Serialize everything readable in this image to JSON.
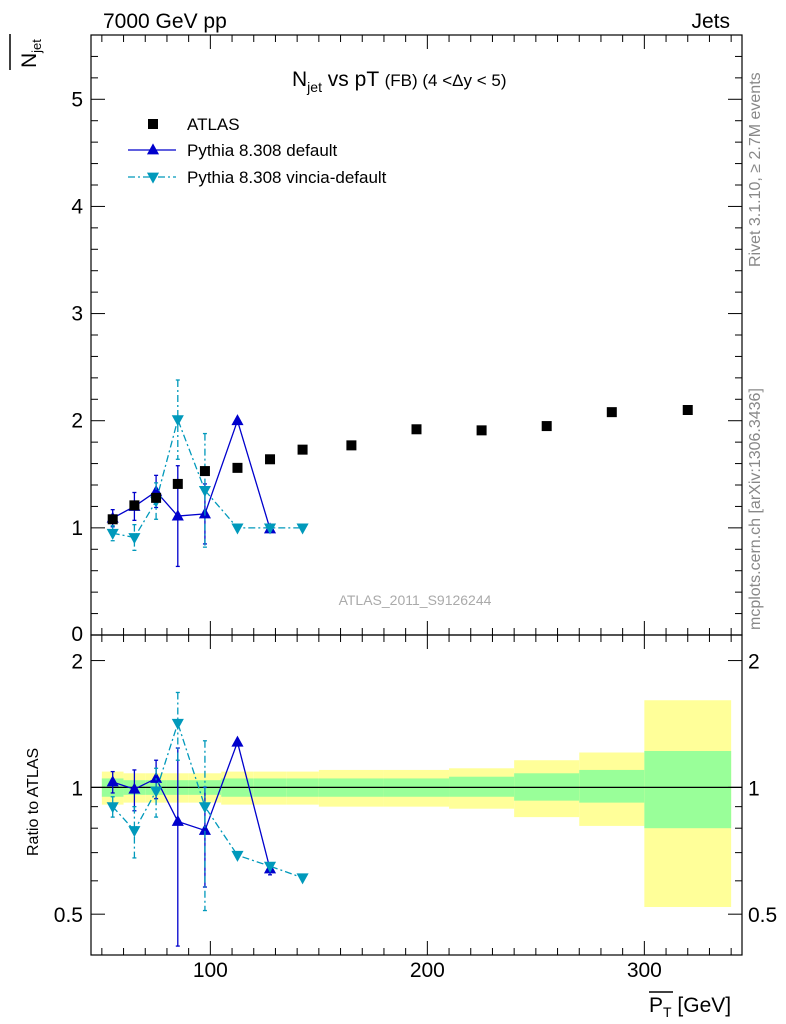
{
  "header": {
    "left": "7000 GeV pp",
    "right": "Jets"
  },
  "title": {
    "main": "N",
    "main_sub": "jet",
    "mid": " vs pT ",
    "tail": "(FB) (4 <Δy < 5)"
  },
  "ylabel_main": {
    "text": "N",
    "sub": "jet"
  },
  "ylabel_ratio": "Ratio to ATLAS",
  "xlabel": {
    "text": "P",
    "sub": "T",
    "unit": " [GeV]"
  },
  "side_text_top": "Rivet 3.1.10, ≥ 2.7M events",
  "side_text_bottom": "mcplots.cern.ch [arXiv:1306.3436]",
  "watermark": "ATLAS_2011_S9126244",
  "colors": {
    "data": "#000000",
    "pythia_default": "#0000cc",
    "vincia": "#0099bb",
    "band_inner": "#99ff99",
    "band_outer": "#ffff99"
  },
  "chart_data": [
    {
      "type": "scatter",
      "panel": "main",
      "xlim": [
        45,
        345
      ],
      "ylim": [
        0,
        5.6
      ],
      "yticks": [
        1,
        2,
        3,
        4,
        5
      ],
      "ytick_labels": [
        "1",
        "2",
        "3",
        "4",
        "5"
      ],
      "y_bottom_label": "0",
      "legend_placement": "top-left",
      "series": [
        {
          "name": "ATLAS",
          "marker": "square",
          "x": [
            55,
            65,
            75,
            85,
            97.5,
            112.5,
            127.5,
            142.5,
            165,
            195,
            225,
            255,
            285,
            320
          ],
          "y": [
            1.08,
            1.21,
            1.28,
            1.41,
            1.53,
            1.56,
            1.64,
            1.73,
            1.77,
            1.92,
            1.91,
            1.95,
            2.08,
            2.1
          ]
        },
        {
          "name": "Pythia 8.308 default",
          "marker": "triangle-up",
          "line": "solid",
          "x": [
            55,
            65,
            75,
            85,
            97.5,
            112.5,
            127.5
          ],
          "y": [
            1.09,
            1.2,
            1.34,
            1.11,
            1.13,
            2.0,
            0.99
          ],
          "yerr": [
            0.08,
            0.13,
            0.15,
            0.47,
            0.28,
            0.0,
            0.0
          ]
        },
        {
          "name": "Pythia 8.308 vincia-default",
          "marker": "triangle-down",
          "line": "dash-dot",
          "x": [
            55,
            65,
            75,
            85,
            97.5,
            112.5,
            127.5,
            142.5
          ],
          "y": [
            0.95,
            0.91,
            1.25,
            2.01,
            1.35,
            1.0,
            1.0,
            1.0
          ],
          "yerr": [
            0.07,
            0.12,
            0.17,
            0.37,
            0.53,
            0.0,
            0.0,
            0.0
          ]
        }
      ]
    },
    {
      "type": "scatter",
      "panel": "ratio",
      "ylabel": "Ratio to ATLAS",
      "xlim": [
        45,
        345
      ],
      "ylim": [
        0.4,
        2.3
      ],
      "yticks": [
        0.5,
        1,
        2
      ],
      "ytick_labels": [
        "0.5",
        "1",
        "2"
      ],
      "xticks": [
        100,
        200,
        300
      ],
      "xtick_labels": [
        "100",
        "200",
        "300"
      ],
      "band": {
        "edges": [
          50,
          60,
          70,
          80,
          90,
          105,
          120,
          135,
          150,
          180,
          210,
          240,
          270,
          300,
          340
        ],
        "inner_lo": [
          0.95,
          0.96,
          0.96,
          0.96,
          0.96,
          0.95,
          0.95,
          0.95,
          0.95,
          0.95,
          0.95,
          0.93,
          0.92,
          0.8
        ],
        "inner_hi": [
          1.05,
          1.04,
          1.04,
          1.04,
          1.04,
          1.05,
          1.05,
          1.05,
          1.05,
          1.05,
          1.06,
          1.08,
          1.1,
          1.22
        ],
        "outer_lo": [
          0.91,
          0.92,
          0.92,
          0.92,
          0.92,
          0.91,
          0.91,
          0.91,
          0.9,
          0.9,
          0.89,
          0.85,
          0.81,
          0.52
        ],
        "outer_hi": [
          1.09,
          1.08,
          1.08,
          1.08,
          1.08,
          1.09,
          1.09,
          1.09,
          1.1,
          1.1,
          1.11,
          1.16,
          1.21,
          1.61
        ]
      },
      "series": [
        {
          "name": "Pythia 8.308 default",
          "marker": "triangle-up",
          "line": "solid",
          "x": [
            55,
            65,
            75,
            85,
            97.5,
            112.5,
            127.5
          ],
          "y": [
            1.03,
            0.99,
            1.05,
            0.83,
            0.79,
            1.28,
            0.64
          ],
          "yerr": [
            0.06,
            0.11,
            0.11,
            0.41,
            0.21,
            0.0,
            0.02
          ]
        },
        {
          "name": "Pythia 8.308 vincia-default",
          "marker": "triangle-down",
          "line": "dash-dot",
          "x": [
            55,
            65,
            75,
            85,
            97.5,
            112.5,
            127.5,
            142.5
          ],
          "y": [
            0.9,
            0.79,
            0.98,
            1.42,
            0.9,
            0.69,
            0.65,
            0.61
          ],
          "yerr": [
            0.05,
            0.11,
            0.13,
            0.26,
            0.39,
            0.0,
            0.0,
            0.0
          ]
        }
      ]
    }
  ]
}
